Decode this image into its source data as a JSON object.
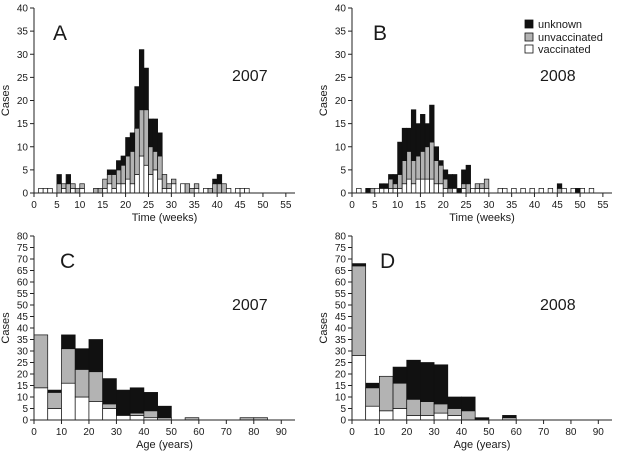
{
  "chart_data": [
    {
      "panel": "A",
      "type": "bar",
      "stacked": true,
      "annotation": "2007",
      "xlabel": "Time (weeks)",
      "ylabel": "Cases",
      "xlim": [
        0,
        57
      ],
      "ylim": [
        0,
        40
      ],
      "xticks": [
        0,
        5,
        10,
        15,
        20,
        25,
        30,
        35,
        40,
        45,
        50,
        55
      ],
      "yticks": [
        0,
        5,
        10,
        15,
        20,
        25,
        30,
        35,
        40
      ],
      "bin_width": 1,
      "x": [
        1,
        2,
        3,
        5,
        6,
        7,
        8,
        9,
        10,
        13,
        14,
        15,
        16,
        17,
        18,
        19,
        20,
        21,
        22,
        23,
        24,
        25,
        26,
        27,
        28,
        29,
        30,
        32,
        33,
        34,
        35,
        37,
        38,
        39,
        40,
        41,
        42,
        44,
        45,
        46
      ],
      "series": [
        {
          "name": "vaccinated",
          "values": [
            1,
            1,
            1,
            0,
            1,
            0,
            1,
            0,
            1,
            0,
            0,
            1,
            2,
            1,
            2,
            2,
            3,
            2,
            4,
            8,
            6,
            4,
            5,
            3,
            1,
            1,
            2,
            2,
            0,
            0,
            1,
            1,
            0,
            0,
            0,
            0,
            1,
            1,
            1,
            1
          ]
        },
        {
          "name": "unvaccinated",
          "values": [
            0,
            0,
            0,
            2,
            1,
            2,
            1,
            1,
            1,
            1,
            1,
            2,
            2,
            3,
            3,
            4,
            5,
            7,
            10,
            10,
            12,
            6,
            4,
            5,
            3,
            1,
            1,
            0,
            2,
            1,
            1,
            0,
            1,
            2,
            2,
            2,
            0,
            0,
            0,
            0
          ]
        },
        {
          "name": "unknown",
          "values": [
            0,
            0,
            0,
            2,
            0,
            2,
            0,
            0,
            0,
            0,
            0,
            0,
            1,
            1,
            2,
            2,
            4,
            4,
            9,
            13,
            9,
            6,
            7,
            5,
            0,
            0,
            0,
            0,
            0,
            0,
            0,
            0,
            0,
            1,
            2,
            0,
            0,
            0,
            0,
            0
          ]
        }
      ]
    },
    {
      "panel": "B",
      "type": "bar",
      "stacked": true,
      "annotation": "2008",
      "xlabel": "Time (weeks)",
      "ylabel": "Cases",
      "xlim": [
        0,
        57
      ],
      "ylim": [
        0,
        40
      ],
      "xticks": [
        0,
        5,
        10,
        15,
        20,
        25,
        30,
        35,
        40,
        45,
        50,
        55
      ],
      "yticks": [
        0,
        5,
        10,
        15,
        20,
        25,
        30,
        35,
        40
      ],
      "bin_width": 1,
      "x": [
        1,
        3,
        4,
        5,
        6,
        7,
        8,
        9,
        10,
        11,
        12,
        13,
        14,
        15,
        16,
        17,
        18,
        19,
        20,
        21,
        22,
        23,
        24,
        25,
        26,
        27,
        28,
        29,
        32,
        33,
        35,
        37,
        39,
        41,
        43,
        45,
        46,
        48,
        49,
        50,
        52
      ],
      "series": [
        {
          "name": "vaccinated",
          "values": [
            1,
            0,
            0,
            1,
            1,
            1,
            1,
            1,
            1,
            2,
            3,
            2,
            3,
            3,
            3,
            3,
            2,
            2,
            1,
            0,
            1,
            0,
            1,
            0,
            1,
            1,
            1,
            1,
            1,
            1,
            1,
            1,
            1,
            1,
            1,
            0,
            1,
            1,
            0,
            1,
            1
          ]
        },
        {
          "name": "unvaccinated",
          "values": [
            0,
            0,
            1,
            0,
            0,
            0,
            2,
            1,
            3,
            5,
            6,
            5,
            5,
            6,
            7,
            8,
            5,
            4,
            2,
            1,
            0,
            0,
            1,
            2,
            0,
            1,
            1,
            2,
            0,
            0,
            0,
            0,
            0,
            0,
            0,
            1,
            0,
            0,
            0,
            0,
            0
          ]
        },
        {
          "name": "unknown",
          "values": [
            0,
            1,
            0,
            0,
            1,
            1,
            1,
            2,
            7,
            7,
            5,
            11,
            7,
            8,
            5,
            8,
            3,
            1,
            2,
            3,
            3,
            1,
            3,
            4,
            0,
            0,
            0,
            0,
            0,
            0,
            0,
            0,
            0,
            0,
            0,
            1,
            0,
            0,
            1,
            0,
            0
          ]
        }
      ]
    },
    {
      "panel": "C",
      "type": "bar",
      "stacked": true,
      "annotation": "2007",
      "xlabel": "Age (years)",
      "ylabel": "Cases",
      "xlim": [
        0,
        95
      ],
      "ylim": [
        0,
        80
      ],
      "xticks": [
        0,
        10,
        20,
        30,
        40,
        50,
        60,
        70,
        80,
        90
      ],
      "yticks": [
        0,
        5,
        10,
        15,
        20,
        25,
        30,
        35,
        40,
        45,
        50,
        55,
        60,
        65,
        70,
        75,
        80
      ],
      "bin_width": 5,
      "x": [
        0,
        5,
        10,
        15,
        20,
        25,
        30,
        35,
        40,
        45,
        55,
        75,
        80
      ],
      "series": [
        {
          "name": "vaccinated",
          "values": [
            14,
            5,
            16,
            10,
            8,
            5,
            2,
            2,
            1,
            0,
            0,
            0,
            0
          ]
        },
        {
          "name": "unvaccinated",
          "values": [
            23,
            7,
            15,
            12,
            13,
            2,
            0,
            1,
            3,
            1,
            1,
            1,
            1
          ]
        },
        {
          "name": "unknown",
          "values": [
            0,
            1,
            6,
            9,
            14,
            11,
            11,
            11,
            8,
            5,
            0,
            0,
            0
          ]
        }
      ]
    },
    {
      "panel": "D",
      "type": "bar",
      "stacked": true,
      "annotation": "2008",
      "xlabel": "Age (years)",
      "ylabel": "Cases",
      "xlim": [
        0,
        95
      ],
      "ylim": [
        0,
        80
      ],
      "xticks": [
        0,
        10,
        20,
        30,
        40,
        50,
        60,
        70,
        80,
        90
      ],
      "yticks": [
        0,
        5,
        10,
        15,
        20,
        25,
        30,
        35,
        40,
        45,
        50,
        55,
        60,
        65,
        70,
        75,
        80
      ],
      "bin_width": 5,
      "x": [
        0,
        5,
        10,
        15,
        20,
        25,
        30,
        35,
        40,
        45,
        55
      ],
      "series": [
        {
          "name": "vaccinated",
          "values": [
            28,
            6,
            4,
            5,
            2,
            2,
            3,
            2,
            0,
            0,
            0
          ]
        },
        {
          "name": "unvaccinated",
          "values": [
            39,
            8,
            15,
            11,
            7,
            6,
            4,
            3,
            4,
            0,
            1
          ]
        },
        {
          "name": "unknown",
          "values": [
            1,
            2,
            0,
            7,
            17,
            17,
            17,
            5,
            6,
            1,
            1
          ]
        }
      ]
    }
  ],
  "legend": {
    "placement": "top-right of panel B",
    "items": [
      {
        "label": "unknown",
        "color": "#111111"
      },
      {
        "label": "unvaccinated",
        "color": "#b3b3b3"
      },
      {
        "label": "vaccinated",
        "color": "#ffffff"
      }
    ]
  },
  "colors": {
    "vaccinated": "#ffffff",
    "unvaccinated": "#b3b3b3",
    "unknown": "#111111",
    "axis": "#222222"
  }
}
